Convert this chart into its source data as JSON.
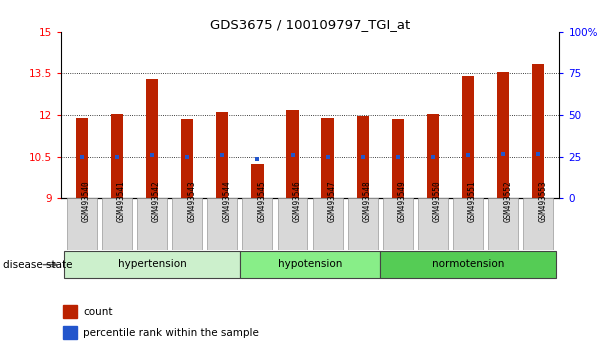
{
  "title": "GDS3675 / 100109797_TGI_at",
  "samples": [
    "GSM493540",
    "GSM493541",
    "GSM493542",
    "GSM493543",
    "GSM493544",
    "GSM493545",
    "GSM493546",
    "GSM493547",
    "GSM493548",
    "GSM493549",
    "GSM493550",
    "GSM493551",
    "GSM493552",
    "GSM493553"
  ],
  "bar_values": [
    11.9,
    12.05,
    13.3,
    11.85,
    12.1,
    10.25,
    12.2,
    11.9,
    11.95,
    11.85,
    12.05,
    13.4,
    13.55,
    13.85
  ],
  "percentile_values": [
    10.5,
    10.5,
    10.55,
    10.5,
    10.55,
    10.42,
    10.55,
    10.5,
    10.5,
    10.5,
    10.5,
    10.55,
    10.6,
    10.6
  ],
  "bar_bottom": 9,
  "ylim_left": [
    9,
    15
  ],
  "ylim_right": [
    0,
    100
  ],
  "yticks_left": [
    9,
    10.5,
    12,
    13.5,
    15
  ],
  "yticks_left_labels": [
    "9",
    "10.5",
    "12",
    "13.5",
    "15"
  ],
  "yticks_right": [
    0,
    25,
    50,
    75,
    100
  ],
  "yticks_right_labels": [
    "0",
    "25",
    "50",
    "75",
    "100%"
  ],
  "bar_color": "#bb2200",
  "percentile_color": "#2255cc",
  "groups": [
    {
      "label": "hypertension",
      "start": 0,
      "end": 4,
      "color": "#ccf0cc"
    },
    {
      "label": "hypotension",
      "start": 5,
      "end": 8,
      "color": "#88ee88"
    },
    {
      "label": "normotension",
      "start": 9,
      "end": 13,
      "color": "#55cc55"
    }
  ],
  "disease_state_label": "disease state",
  "legend_count_label": "count",
  "legend_percentile_label": "percentile rank within the sample",
  "grid_values": [
    10.5,
    12,
    13.5
  ],
  "background_color": "#ffffff"
}
